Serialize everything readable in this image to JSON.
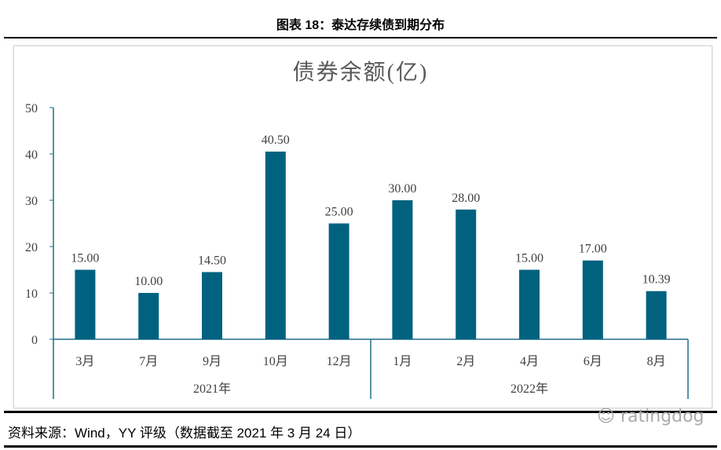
{
  "figure_title": "图表 18：泰达存续债到期分布",
  "source": "资料来源：Wind，YY 评级（数据截至 2021 年 3 月 24 日）",
  "watermark": "ratingdog",
  "chart_data": {
    "type": "bar",
    "title": "债券余额(亿)",
    "categories": [
      "3月",
      "7月",
      "9月",
      "10月",
      "12月",
      "1月",
      "2月",
      "4月",
      "6月",
      "8月"
    ],
    "groups": [
      {
        "label": "2021年",
        "count": 5
      },
      {
        "label": "2022年",
        "count": 5
      }
    ],
    "values": [
      15.0,
      10.0,
      14.5,
      40.5,
      25.0,
      30.0,
      28.0,
      15.0,
      17.0,
      10.39
    ],
    "data_labels": [
      "15.00",
      "10.00",
      "14.50",
      "40.50",
      "25.00",
      "30.00",
      "28.00",
      "15.00",
      "17.00",
      "10.39"
    ],
    "ylim": [
      0,
      50
    ],
    "yticks": [
      0,
      10,
      20,
      30,
      40,
      50
    ],
    "grid": false,
    "bar_color": "#00627f",
    "axis_color": "#1f6e8c"
  }
}
